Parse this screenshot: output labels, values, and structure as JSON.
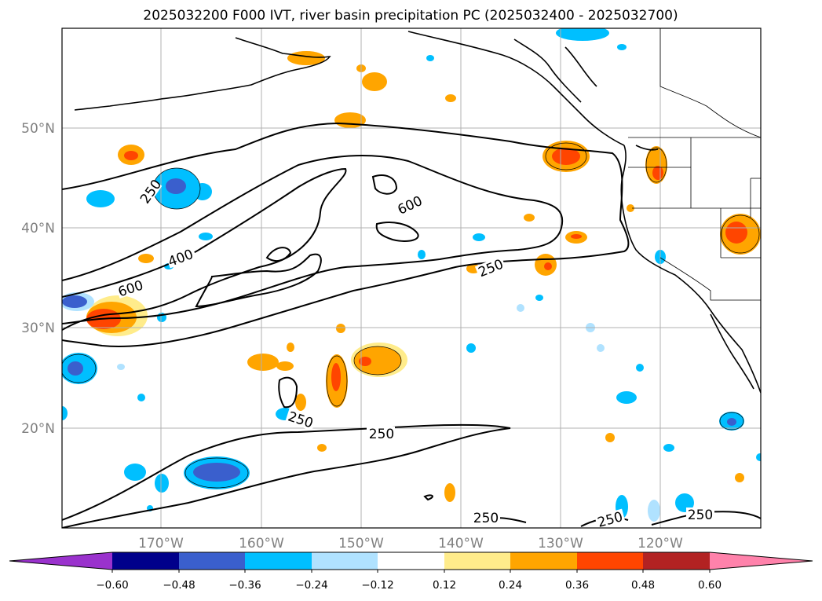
{
  "title": "2025032200 F000 IVT, river basin precipitation PC (2025032400 - 2025032700)",
  "lat_labels": [
    "50°N",
    "40°N",
    "30°N",
    "20°N"
  ],
  "lon_labels": [
    "170°W",
    "160°W",
    "150°W",
    "140°W",
    "130°W",
    "120°W"
  ],
  "contour_labels": [
    "250",
    "400",
    "600",
    "600",
    "250",
    "250",
    "250",
    "250",
    "250",
    "250"
  ],
  "colorbar": {
    "ticks": [
      "−0.60",
      "−0.48",
      "−0.36",
      "−0.24",
      "−0.12",
      "0.12",
      "0.24",
      "0.36",
      "0.48",
      "0.60"
    ],
    "colors": [
      "#9a32cd",
      "#00008b",
      "#3a5fcd",
      "#00bfff",
      "#b0e2ff",
      "#ffffff",
      "#ffec8b",
      "#ffa500",
      "#ff4500",
      "#b22222",
      "#ff82ab"
    ]
  },
  "colors": {
    "land_line": "#000000",
    "grid": "#b0b0b0",
    "label_gray": "#808080"
  }
}
